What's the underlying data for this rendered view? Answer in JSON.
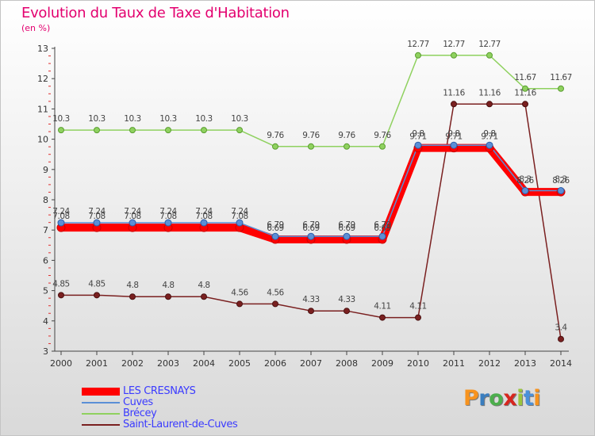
{
  "header": {
    "title": "Evolution du Taux de Taxe d'Habitation",
    "unit": "(en %)"
  },
  "brand": {
    "letters": [
      "P",
      "r",
      "o",
      "x",
      "i",
      "t",
      "i"
    ],
    "colors": [
      "#f7931e",
      "#3a7ebf",
      "#4cae4c",
      "#d7261e",
      "#9bc53d",
      "#4a90d9",
      "#f7931e"
    ]
  },
  "colors": {
    "title": "#e3006f",
    "legend_text": "#3b3bff"
  },
  "chart_data": {
    "type": "line",
    "title": "Evolution du Taux de Taxe d'Habitation",
    "ylabel": "(en %)",
    "xlabel": "",
    "x": [
      "2000",
      "2001",
      "2002",
      "2003",
      "2004",
      "2005",
      "2006",
      "2007",
      "2008",
      "2009",
      "2010",
      "2011",
      "2012",
      "2013",
      "2014"
    ],
    "ylim": [
      3,
      13
    ],
    "yticks": [
      3,
      4,
      5,
      6,
      7,
      8,
      9,
      10,
      11,
      12,
      13
    ],
    "grid": false,
    "legend_position": "bottom-left",
    "series": [
      {
        "name": "LES CRESNAYS",
        "color": "#ff0000",
        "values": [
          7.08,
          7.08,
          7.08,
          7.08,
          7.08,
          7.08,
          6.69,
          6.69,
          6.69,
          6.69,
          9.71,
          9.71,
          9.71,
          8.26,
          8.26
        ],
        "labels": [
          "7.08",
          "7.08",
          "7.08",
          "7.08",
          "7.08",
          "7.08",
          "6.69",
          "6.69",
          "6.69",
          "6.69",
          "9.71",
          "9.71",
          "9.71",
          "8.26",
          "8.26"
        ]
      },
      {
        "name": "Cuves",
        "color": "#5b8fd6",
        "values": [
          7.24,
          7.24,
          7.24,
          7.24,
          7.24,
          7.24,
          6.79,
          6.79,
          6.79,
          6.79,
          9.8,
          9.8,
          9.8,
          8.3,
          8.3
        ],
        "labels": [
          "7.24",
          "7.24",
          "7.24",
          "7.24",
          "7.24",
          "7.24",
          "6.79",
          "6.79",
          "6.79",
          "6.79",
          "9.8",
          "9.8",
          "9.8",
          "8.3",
          "8.3"
        ]
      },
      {
        "name": "Brécey",
        "color": "#8fd15f",
        "values": [
          10.3,
          10.3,
          10.3,
          10.3,
          10.3,
          10.3,
          9.76,
          9.76,
          9.76,
          9.76,
          12.77,
          12.77,
          12.77,
          11.67,
          11.67
        ],
        "labels": [
          "10.3",
          "10.3",
          "10.3",
          "10.3",
          "10.3",
          "10.3",
          "9.76",
          "9.76",
          "9.76",
          "9.76",
          "12.77",
          "12.77",
          "12.77",
          "11.67",
          "11.67"
        ]
      },
      {
        "name": "Saint-Laurent-de-Cuves",
        "color": "#7a2020",
        "values": [
          4.85,
          4.85,
          4.8,
          4.8,
          4.8,
          4.56,
          4.56,
          4.33,
          4.33,
          4.11,
          4.11,
          11.16,
          11.16,
          11.16,
          3.4
        ],
        "labels": [
          "4.85",
          "4.85",
          "4.8",
          "4.8",
          "4.8",
          "4.56",
          "4.56",
          "4.33",
          "4.33",
          "4.11",
          "4.11",
          "11.16",
          "11.16",
          "11.16",
          "3.4"
        ]
      }
    ]
  }
}
